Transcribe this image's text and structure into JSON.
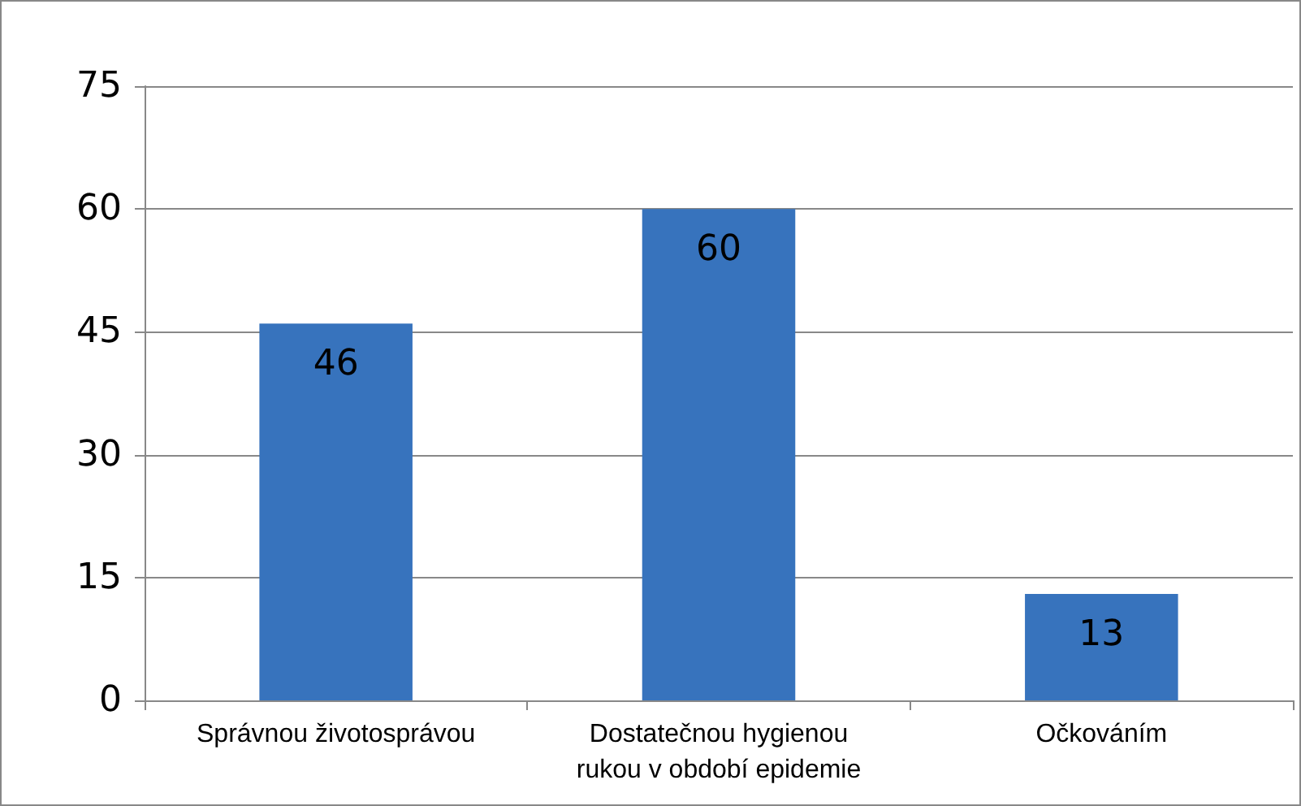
{
  "chart_data": {
    "type": "bar",
    "categories": [
      "Správnou životosprávou",
      "Dostatečnou hygienou\nrukou v období epidemie",
      "Očkováním"
    ],
    "values": [
      46,
      60,
      13
    ],
    "color": "#3773bd",
    "ylim": [
      0,
      75
    ],
    "yticks": [
      0,
      15,
      30,
      45,
      60,
      75
    ],
    "grid": "y",
    "data_labels": true
  }
}
